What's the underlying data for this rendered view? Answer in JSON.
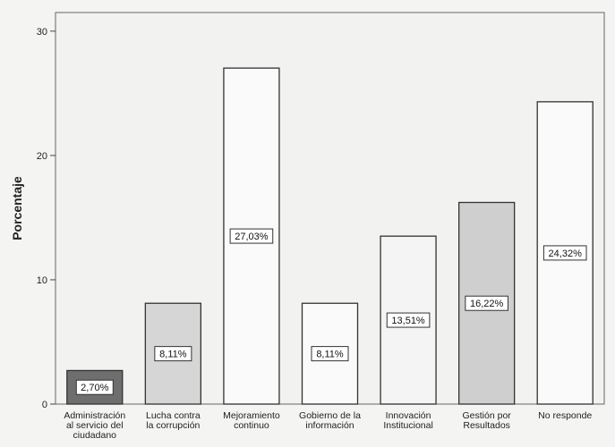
{
  "chart_data": {
    "type": "bar",
    "title": "",
    "xlabel": "",
    "ylabel": "Porcentaje",
    "ylim": [
      0,
      31.5
    ],
    "yticks": [
      0,
      10,
      20,
      30
    ],
    "grid": false,
    "categories": [
      [
        "Administración",
        "al servicio del",
        "ciudadano"
      ],
      [
        "Lucha contra",
        "la corrupción"
      ],
      [
        "Mejoramiento",
        "continuo"
      ],
      [
        "Gobierno de la",
        "información"
      ],
      [
        "Innovación",
        "Institucional"
      ],
      [
        "Gestión por",
        "Resultados"
      ],
      [
        "No responde"
      ]
    ],
    "values": [
      2.7,
      8.11,
      27.03,
      8.11,
      13.51,
      16.22,
      24.32
    ],
    "data_labels": [
      "2,70%",
      "8,11%",
      "27,03%",
      "8,11%",
      "13,51%",
      "16,22%",
      "24,32%"
    ],
    "bar_colors": [
      "#6e6e6e",
      "#d6d6d6",
      "#fafafa",
      "#fafafa",
      "#f4f4f4",
      "#cfcfcf",
      "#fafafa"
    ]
  }
}
